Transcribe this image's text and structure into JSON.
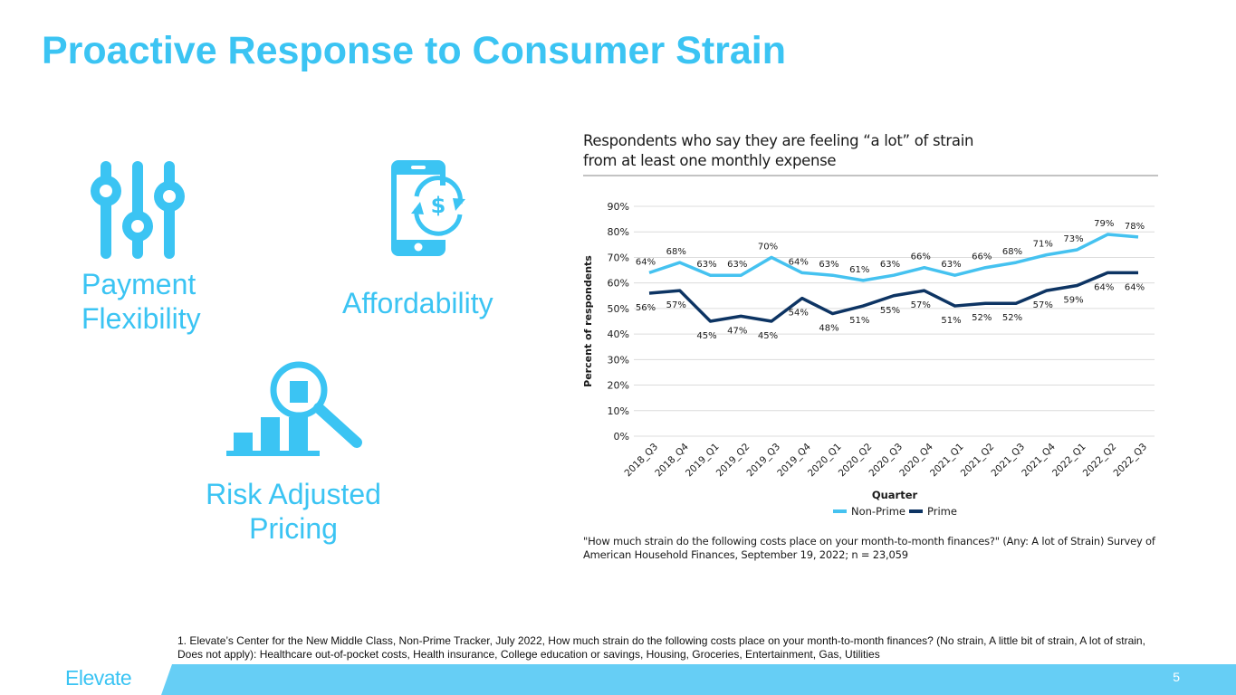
{
  "slide": {
    "title": "Proactive Response to Consumer Strain",
    "page_number": "5",
    "brand": "Elevate",
    "colors": {
      "accent": "#3bc4f3",
      "footer": "#66cef5",
      "non_prime": "#45c2f0",
      "prime": "#0d3463"
    }
  },
  "features": [
    {
      "icon": "sliders-icon",
      "label_line1": "Payment",
      "label_line2": "Flexibility"
    },
    {
      "icon": "phone-dollar-refresh-icon",
      "label_line1": "Affordability"
    },
    {
      "icon": "bar-chart-magnifier-icon",
      "label_line1": "Risk Adjusted",
      "label_line2": "Pricing"
    }
  ],
  "chart_title": {
    "line1": "Respondents who say they are feeling “a lot” of strain",
    "line2": "from at least one monthly expense"
  },
  "chart_note": "\"How much strain do the following costs place on your month-to-month finances?\" (Any:  A lot of Strain) Survey of American Household Finances, September 19, 2022; n = 23,059",
  "footnote": "1. Elevate’s Center for the New Middle Class, Non-Prime Tracker, July 2022, How much strain do the following costs place on your month-to-month finances? (No strain, A little bit of strain, A lot of strain, Does not apply): Healthcare out-of-pocket costs, Health insurance, College education or savings, Housing, Groceries, Entertainment, Gas, Utilities",
  "chart_data": {
    "type": "line",
    "title": "Respondents who say they are feeling “a lot” of strain from at least one monthly expense",
    "xlabel": "Quarter",
    "ylabel": "Percent of respondents",
    "ylim": [
      0,
      90
    ],
    "yticks": [
      "0%",
      "10%",
      "20%",
      "30%",
      "40%",
      "50%",
      "60%",
      "70%",
      "80%",
      "90%"
    ],
    "ytick_values": [
      0,
      10,
      20,
      30,
      40,
      50,
      60,
      70,
      80,
      90
    ],
    "grid": true,
    "legend": "bottom-center",
    "categories": [
      "2018_Q3",
      "2018_Q4",
      "2019_Q1",
      "2019_Q2",
      "2019_Q3",
      "2019_Q4",
      "2020_Q1",
      "2020_Q2",
      "2020_Q3",
      "2020_Q4",
      "2021_Q1",
      "2021_Q2",
      "2021_Q3",
      "2021_Q4",
      "2022_Q1",
      "2022_Q2",
      "2022_Q3"
    ],
    "series": [
      {
        "name": "Non-Prime",
        "color": "#45c2f0",
        "label_pos": "above",
        "values": [
          64,
          68,
          63,
          63,
          70,
          64,
          63,
          61,
          63,
          66,
          63,
          66,
          68,
          71,
          73,
          79,
          78
        ],
        "labels": [
          "64%",
          "68%",
          "63%",
          "63%",
          "70%",
          "64%",
          "63%",
          "61%",
          "63%",
          "66%",
          "63%",
          "66%",
          "68%",
          "71%",
          "73%",
          "79%",
          "78%"
        ]
      },
      {
        "name": "Prime",
        "color": "#0d3463",
        "label_pos": "below",
        "values": [
          56,
          57,
          45,
          47,
          45,
          54,
          48,
          51,
          55,
          57,
          51,
          52,
          52,
          57,
          59,
          64,
          64
        ],
        "labels": [
          "56%",
          "57%",
          "45%",
          "47%",
          "45%",
          "54%",
          "48%",
          "51%",
          "55%",
          "57%",
          "51%",
          "52%",
          "52%",
          "57%",
          "59%",
          "64%",
          "64%"
        ]
      }
    ]
  }
}
